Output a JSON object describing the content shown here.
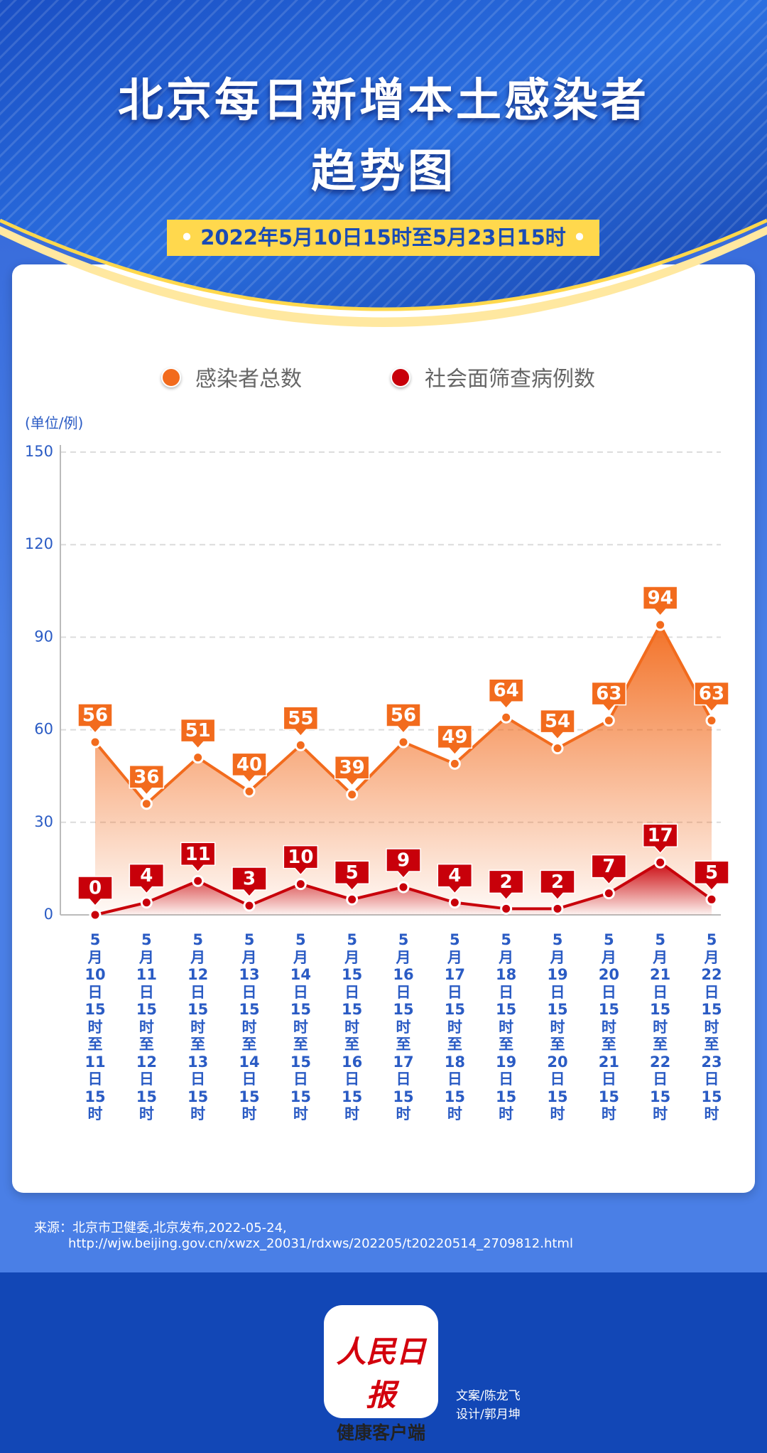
{
  "header": {
    "title_lines": [
      "北京每日新增本土感染者",
      "趋势图"
    ],
    "subtitle": "2022年5月10日15时至5月23日15时"
  },
  "chart_data": {
    "type": "line",
    "unit_label": "(单位/例)",
    "categories": [
      "5月10日15时至11日15时",
      "5月11日15时至12日15时",
      "5月12日15时至13日15时",
      "5月13日15时至14日15时",
      "5月14日15时至15日15时",
      "5月15日15时至16日15时",
      "5月16日15时至17日15时",
      "5月17日15时至18日15时",
      "5月18日15时至19日15时",
      "5月19日15时至20日15时",
      "5月20日15时至21日15时",
      "5月21日15时至22日15时",
      "5月22日15时至23日15时"
    ],
    "series": [
      {
        "name": "感染者总数",
        "color": "#f26b1d",
        "values": [
          56,
          36,
          51,
          40,
          55,
          39,
          56,
          49,
          64,
          54,
          63,
          94,
          63
        ]
      },
      {
        "name": "社会面筛查病例数",
        "color": "#c8000a",
        "values": [
          0,
          4,
          11,
          3,
          10,
          5,
          9,
          4,
          2,
          2,
          7,
          17,
          5
        ]
      }
    ],
    "ylim": [
      0,
      150
    ],
    "yticks": [
      0,
      30,
      60,
      90,
      120,
      150
    ],
    "grid": true
  },
  "source": {
    "lines": [
      "来源：北京市卫健委,北京发布,2022-05-24,",
      "http://wjw.beijing.gov.cn/xwzx_20031/rdxws/202205/t20220514_2709812.html"
    ]
  },
  "footer": {
    "logo_lines": [
      "人民日报",
      "健康客户端"
    ],
    "credits": [
      "文案/陈龙飞",
      "设计/郭月坤"
    ]
  }
}
